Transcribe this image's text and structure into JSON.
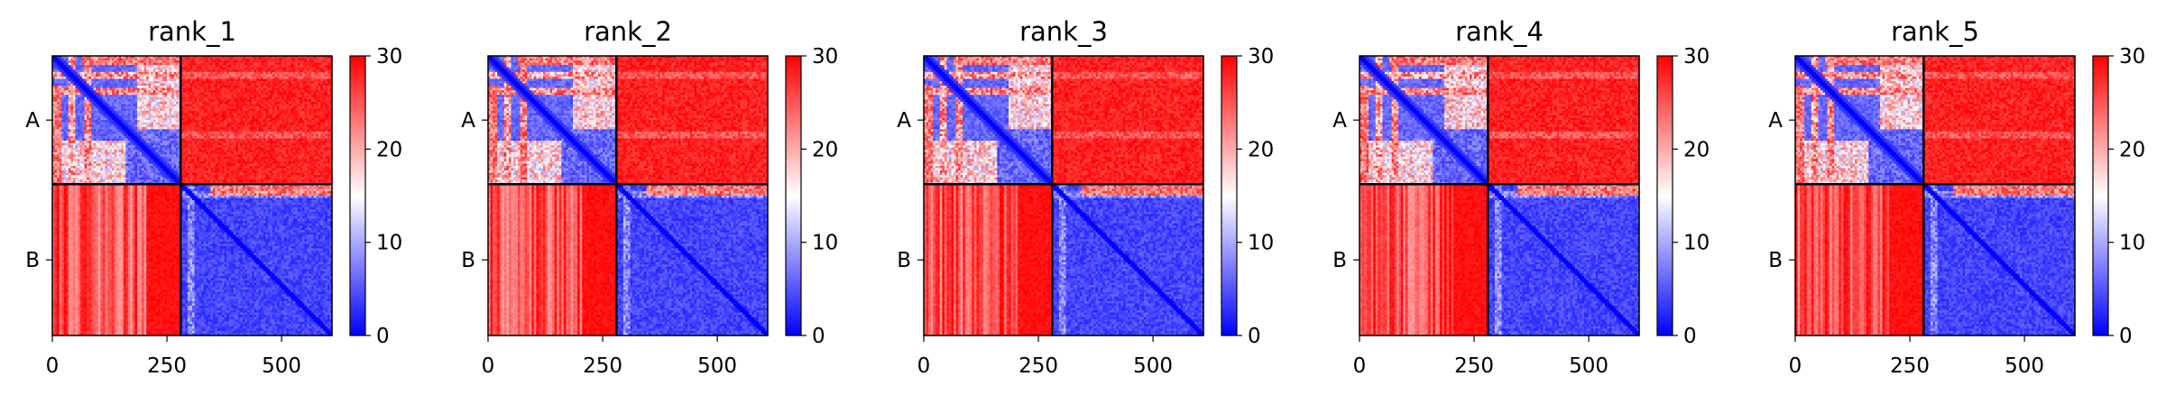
{
  "chart_data": {
    "type": "heatmap",
    "description_kind": "predicted aligned error matrices",
    "colormap": {
      "name": "bwr",
      "low_color": "#0000ff",
      "mid_color": "#ffffff",
      "high_color": "#ff0000",
      "vmin": 0,
      "vmax": 30,
      "ticks": [
        0,
        10,
        20,
        30
      ],
      "tick_labels": [
        "0",
        "10",
        "20",
        "30"
      ]
    },
    "matrix_size": 610,
    "chain_boundary": 280,
    "chains": [
      {
        "label": "A",
        "start": 0,
        "end": 280
      },
      {
        "label": "B",
        "start": 280,
        "end": 610
      }
    ],
    "x_axis": {
      "range": [
        0,
        610
      ],
      "ticks": [
        0,
        250,
        500
      ],
      "tick_labels": [
        "0",
        "250",
        "500"
      ]
    },
    "y_axis": {
      "tick_labels": [
        "A",
        "B"
      ]
    },
    "block_mean_values": {
      "A_A": 8,
      "A_B": 29,
      "B_A": 26,
      "B_B": 4
    },
    "panels": [
      {
        "title": "rank_1"
      },
      {
        "title": "rank_2"
      },
      {
        "title": "rank_3"
      },
      {
        "title": "rank_4"
      },
      {
        "title": "rank_5"
      }
    ]
  }
}
